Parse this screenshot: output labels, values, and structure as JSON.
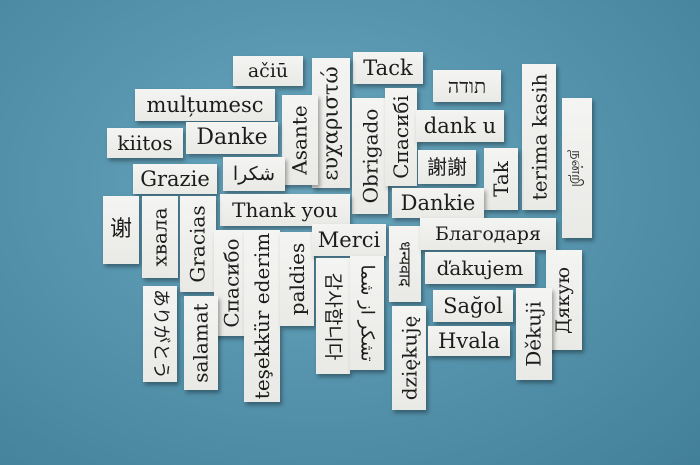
{
  "words": {
    "aciu": "ačiū",
    "tack": "Tack",
    "toda": "תודה",
    "multumesc": "mulțumesc",
    "eucharisto": "ευχαριστώ",
    "asante": "Asante",
    "obrigado": "Obrigado",
    "spasibi": "Спасибі",
    "dank_u": "dank u",
    "terima_kasih": "terima kasih",
    "tamil": "நன்றி",
    "kiitos": "kiitos",
    "danke": "Danke",
    "grazie": "Grazie",
    "shukran": "شكرا",
    "xiexie_trad": "謝謝",
    "tak": "Tak",
    "thank_you": "Thank you",
    "dankie": "Dankie",
    "xie_vertical": "谢",
    "khvala": "хвала",
    "gracias": "Gracias",
    "spasibo": "Спасибо",
    "tesekkur": "teşekkür ederim",
    "paldies": "paldies",
    "merci": "Merci",
    "korean": "감사합니다",
    "farsi": "تشکر از شما",
    "hindi": "धन्यवाद",
    "blagodarya": "Благодаря",
    "dakujem": "ďakujem",
    "dyakuyu": "Дякую",
    "salamat": "salamat",
    "hebrew_vertical": "ありがとう",
    "sagol": "Sağol",
    "dziekuje": "dziękuję",
    "hvala": "Hvala",
    "dekuji": "Děkuji"
  }
}
